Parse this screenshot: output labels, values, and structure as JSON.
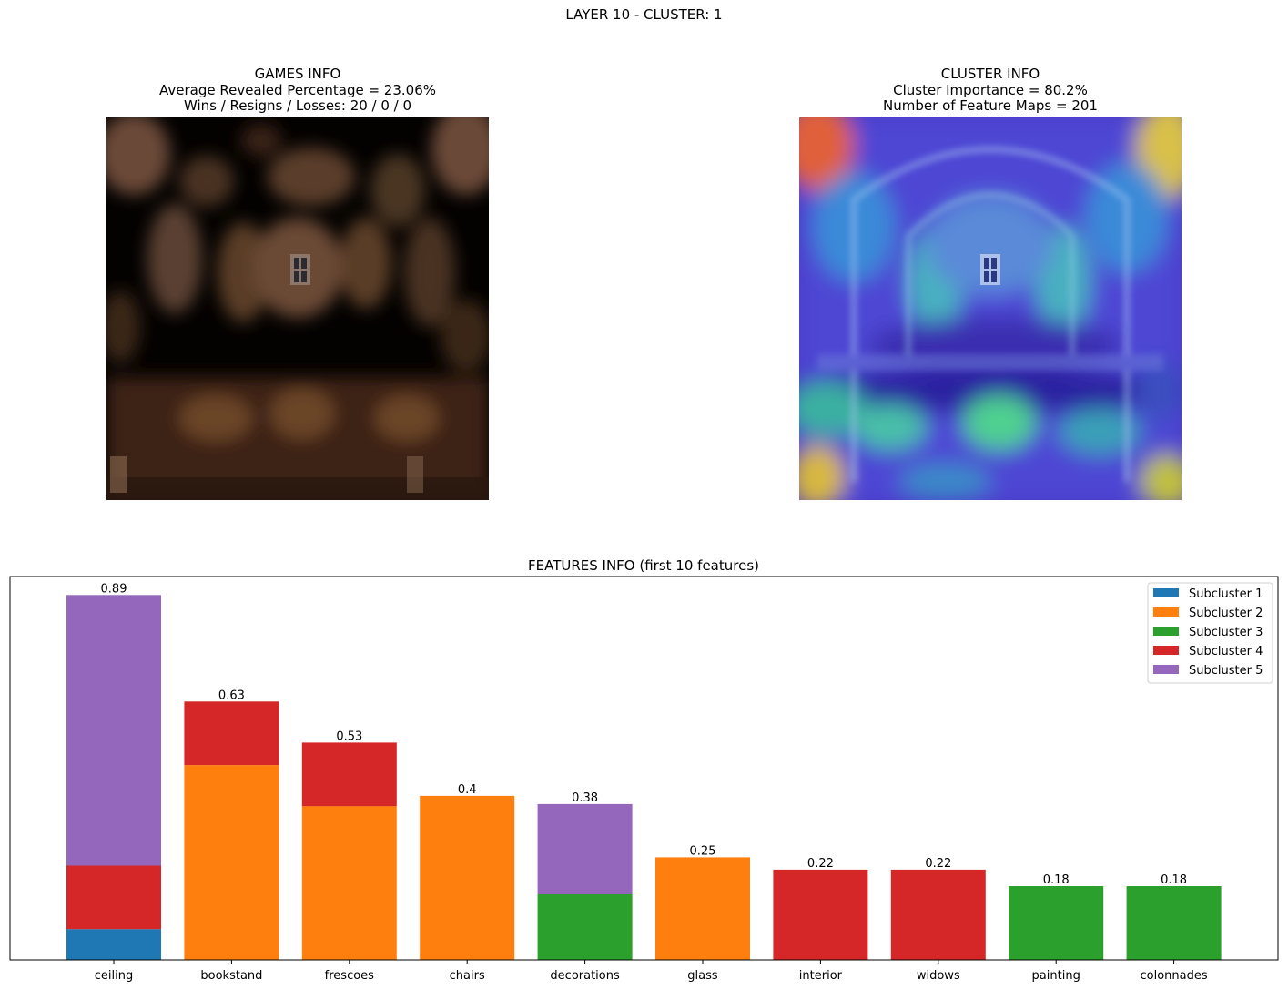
{
  "figure_title": "LAYER 10 - CLUSTER: 1",
  "games_info": {
    "title": "GAMES INFO",
    "line1": "Average Revealed Percentage = 23.06%",
    "line2": "Wins / Resigns / Losses: 20 / 0 / 0"
  },
  "cluster_info": {
    "title": "CLUSTER INFO",
    "line1": "Cluster Importance = 80.2%",
    "line2": "Number of Feature Maps = 201"
  },
  "colors": {
    "Subcluster 1": "#1f77b4",
    "Subcluster 2": "#ff7f0e",
    "Subcluster 3": "#2ca02c",
    "Subcluster 4": "#d62728",
    "Subcluster 5": "#9467bd"
  },
  "chart_data": {
    "type": "bar",
    "stacked": true,
    "title": "FEATURES INFO (first 10 features)",
    "xlabel": "",
    "ylabel": "",
    "ylim": [
      0,
      0.935
    ],
    "grid": false,
    "legend_position": "top-right",
    "categories": [
      "ceiling",
      "bookstand",
      "frescoes",
      "chairs",
      "decorations",
      "glass",
      "interior",
      "widows",
      "painting",
      "colonnades"
    ],
    "totals": [
      "0.89",
      "0.63",
      "0.53",
      "0.4",
      "0.38",
      "0.25",
      "0.22",
      "0.22",
      "0.18",
      "0.18"
    ],
    "series": [
      {
        "name": "Subcluster 1",
        "values": [
          0.075,
          0,
          0,
          0,
          0,
          0,
          0,
          0,
          0,
          0
        ]
      },
      {
        "name": "Subcluster 2",
        "values": [
          0,
          0.475,
          0.375,
          0.4,
          0,
          0.25,
          0,
          0,
          0,
          0
        ]
      },
      {
        "name": "Subcluster 3",
        "values": [
          0,
          0,
          0,
          0,
          0.16,
          0,
          0,
          0,
          0.18,
          0.18
        ]
      },
      {
        "name": "Subcluster 4",
        "values": [
          0.155,
          0.155,
          0.155,
          0,
          0,
          0,
          0.22,
          0.22,
          0,
          0
        ]
      },
      {
        "name": "Subcluster 5",
        "values": [
          0.66,
          0,
          0,
          0,
          0.22,
          0,
          0,
          0,
          0,
          0
        ]
      }
    ]
  }
}
